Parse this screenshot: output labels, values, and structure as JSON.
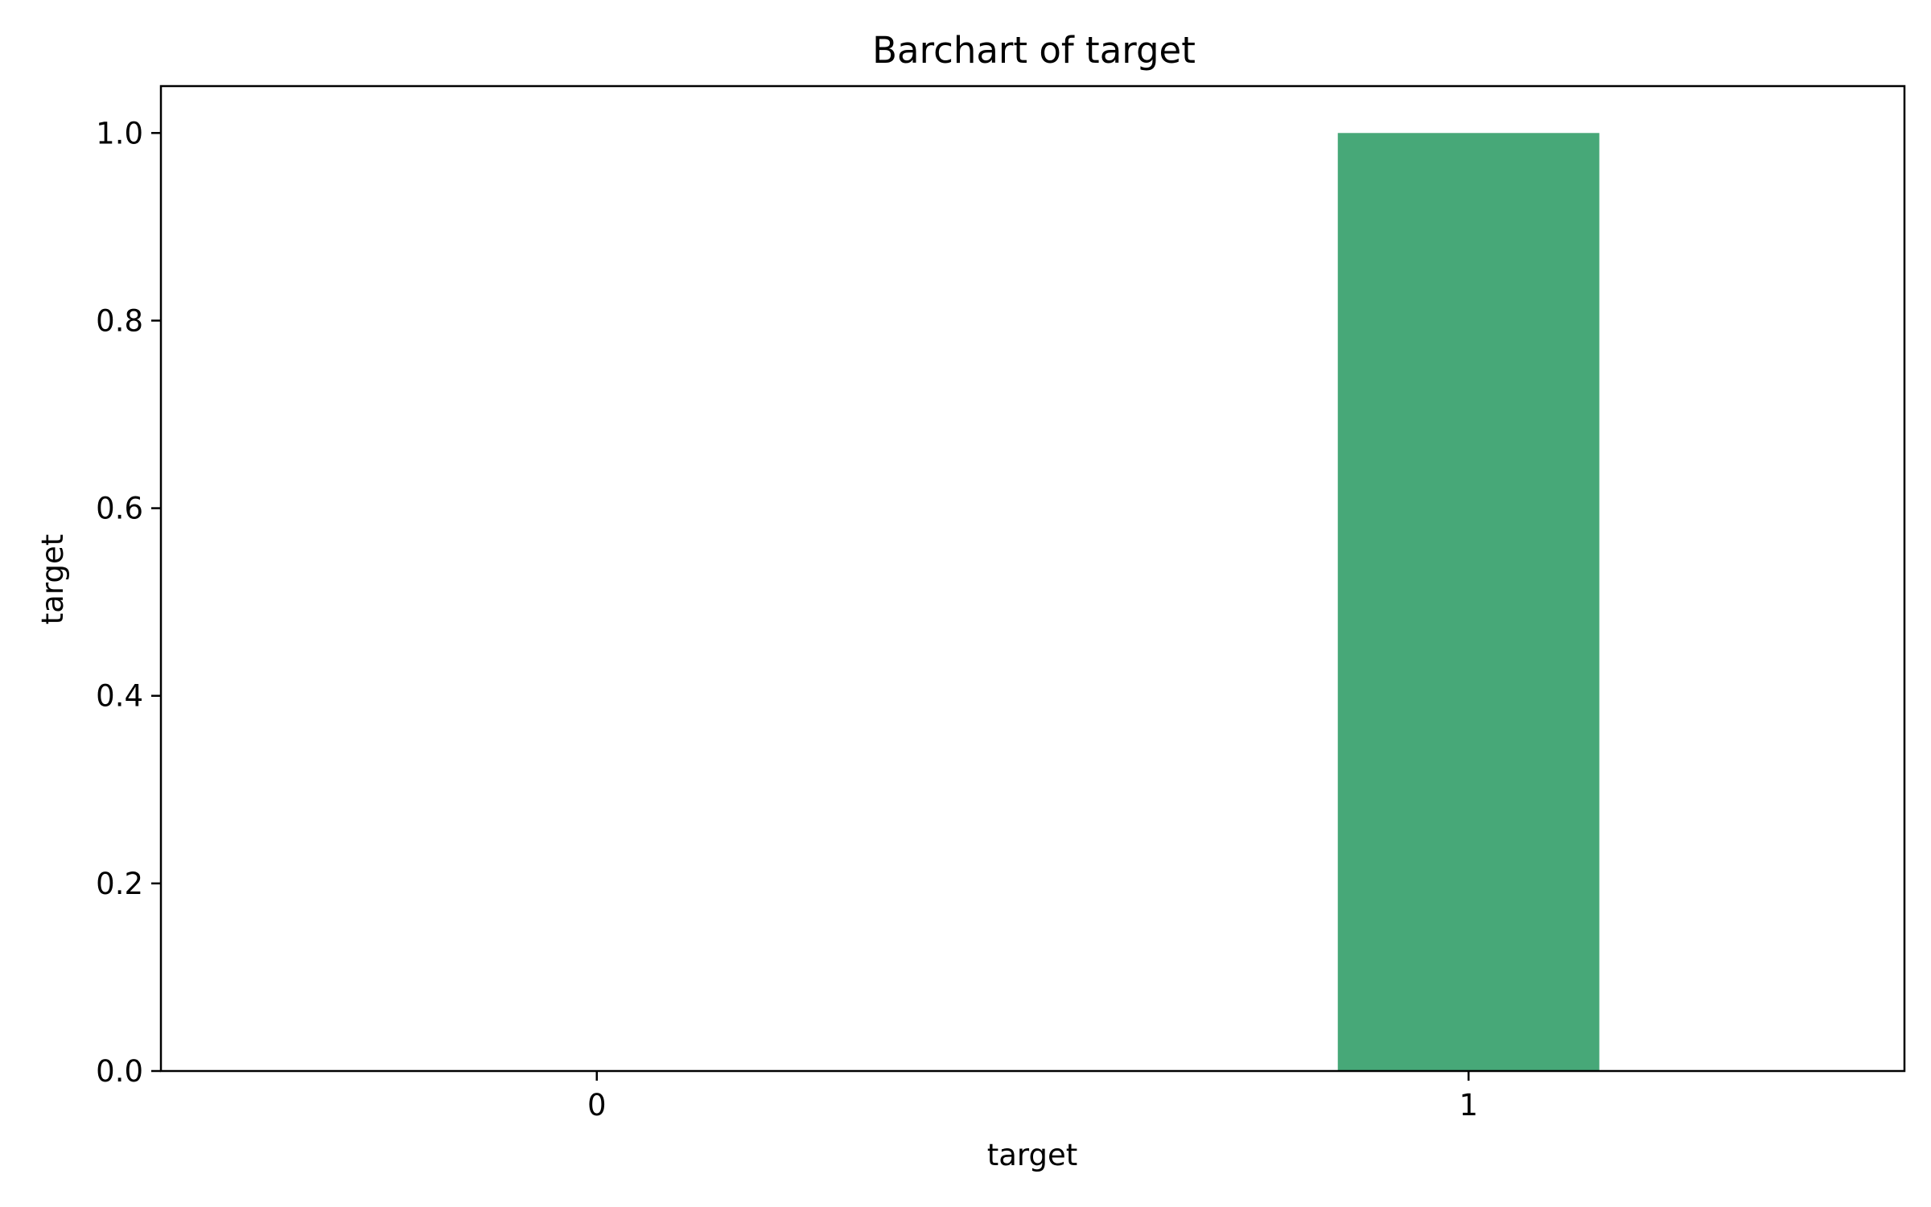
{
  "chart_data": {
    "type": "bar",
    "title": "Barchart of target",
    "xlabel": "target",
    "ylabel": "target",
    "categories": [
      "0",
      "1"
    ],
    "values": [
      0,
      1.0
    ],
    "ylim": [
      0,
      1.05
    ],
    "yticks": [
      "0.0",
      "0.2",
      "0.4",
      "0.6",
      "0.8",
      "1.0"
    ],
    "ytick_values": [
      0,
      0.2,
      0.4,
      0.6,
      0.8,
      1.0
    ],
    "grid": false,
    "legend": "none",
    "bar_color": "#47a878"
  }
}
